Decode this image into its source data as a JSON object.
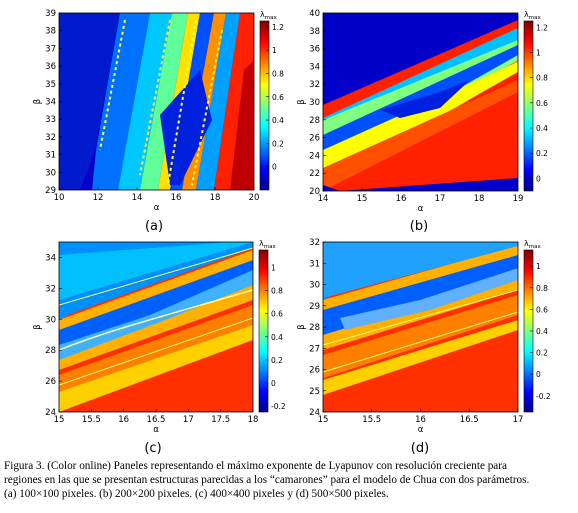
{
  "caption": {
    "line1": "Figura 3. (Color online) Paneles representando el máximo exponente de Lyapunov con resolución creciente para",
    "line2": "regiones en las que se presentan estructuras parecidas a los “camarones” para el modelo de Chua con dos parámetros.",
    "line3": "(a) 100×100 pixeles. (b) 200×200 pixeles. (c) 400×400 pixeles y (d) 500×500 pixeles."
  },
  "colorbar_colors": [
    "#00008f",
    "#0000ff",
    "#0080ff",
    "#00ffff",
    "#80ff80",
    "#ffff00",
    "#ff8000",
    "#ff0000",
    "#800000"
  ],
  "chart_data": [
    {
      "type": "heatmap",
      "panel_label": "(a)",
      "xlabel": "α",
      "ylabel": "β",
      "colorbar_label": "λ",
      "colorbar_sub": "max",
      "xlim": [
        10,
        20
      ],
      "ylim": [
        29,
        39
      ],
      "xticks": [
        10,
        12,
        14,
        16,
        18,
        20
      ],
      "yticks": [
        29,
        30,
        31,
        32,
        33,
        34,
        35,
        36,
        37,
        38,
        39
      ],
      "clim": [
        -0.2,
        1.25
      ],
      "cticks": [
        0,
        0.2,
        0.4,
        0.6,
        0.8,
        1,
        1.2
      ]
    },
    {
      "type": "heatmap",
      "panel_label": "(b)",
      "xlabel": "α",
      "ylabel": "β",
      "colorbar_label": "λ",
      "colorbar_sub": "max",
      "xlim": [
        14,
        19
      ],
      "ylim": [
        20,
        40
      ],
      "xticks": [
        14,
        15,
        16,
        17,
        18,
        19
      ],
      "yticks": [
        20,
        22,
        24,
        26,
        28,
        30,
        32,
        34,
        36,
        38,
        40
      ],
      "clim": [
        -0.1,
        1.25
      ],
      "cticks": [
        0,
        0.2,
        0.4,
        0.6,
        0.8,
        1,
        1.2
      ]
    },
    {
      "type": "heatmap",
      "panel_label": "(c)",
      "xlabel": "α",
      "ylabel": "β",
      "colorbar_label": "λ",
      "colorbar_sub": "max",
      "xlim": [
        15,
        18
      ],
      "ylim": [
        24,
        35
      ],
      "xticks": [
        15,
        15.5,
        16,
        16.5,
        17,
        17.5,
        18
      ],
      "xticklabels": [
        "15",
        "15.5",
        "16",
        "16.5",
        "17",
        "17.5",
        "18"
      ],
      "yticks": [
        24,
        26,
        28,
        30,
        32,
        34
      ],
      "clim": [
        -0.25,
        1.15
      ],
      "cticks": [
        -0.2,
        0,
        0.2,
        0.4,
        0.6,
        0.8,
        1
      ]
    },
    {
      "type": "heatmap",
      "panel_label": "(d)",
      "xlabel": "α",
      "ylabel": "β",
      "colorbar_label": "λ",
      "colorbar_sub": "max",
      "xlim": [
        15,
        17
      ],
      "ylim": [
        24,
        32
      ],
      "xticks": [
        15,
        15.5,
        16,
        16.5,
        17
      ],
      "xticklabels": [
        "15",
        "15.5",
        "16",
        "16.5",
        "17"
      ],
      "yticks": [
        24,
        25,
        26,
        27,
        28,
        29,
        30,
        31,
        32
      ],
      "clim": [
        -0.35,
        1.15
      ],
      "cticks": [
        -0.2,
        0,
        0.2,
        0.4,
        0.6,
        0.8,
        1
      ]
    }
  ]
}
